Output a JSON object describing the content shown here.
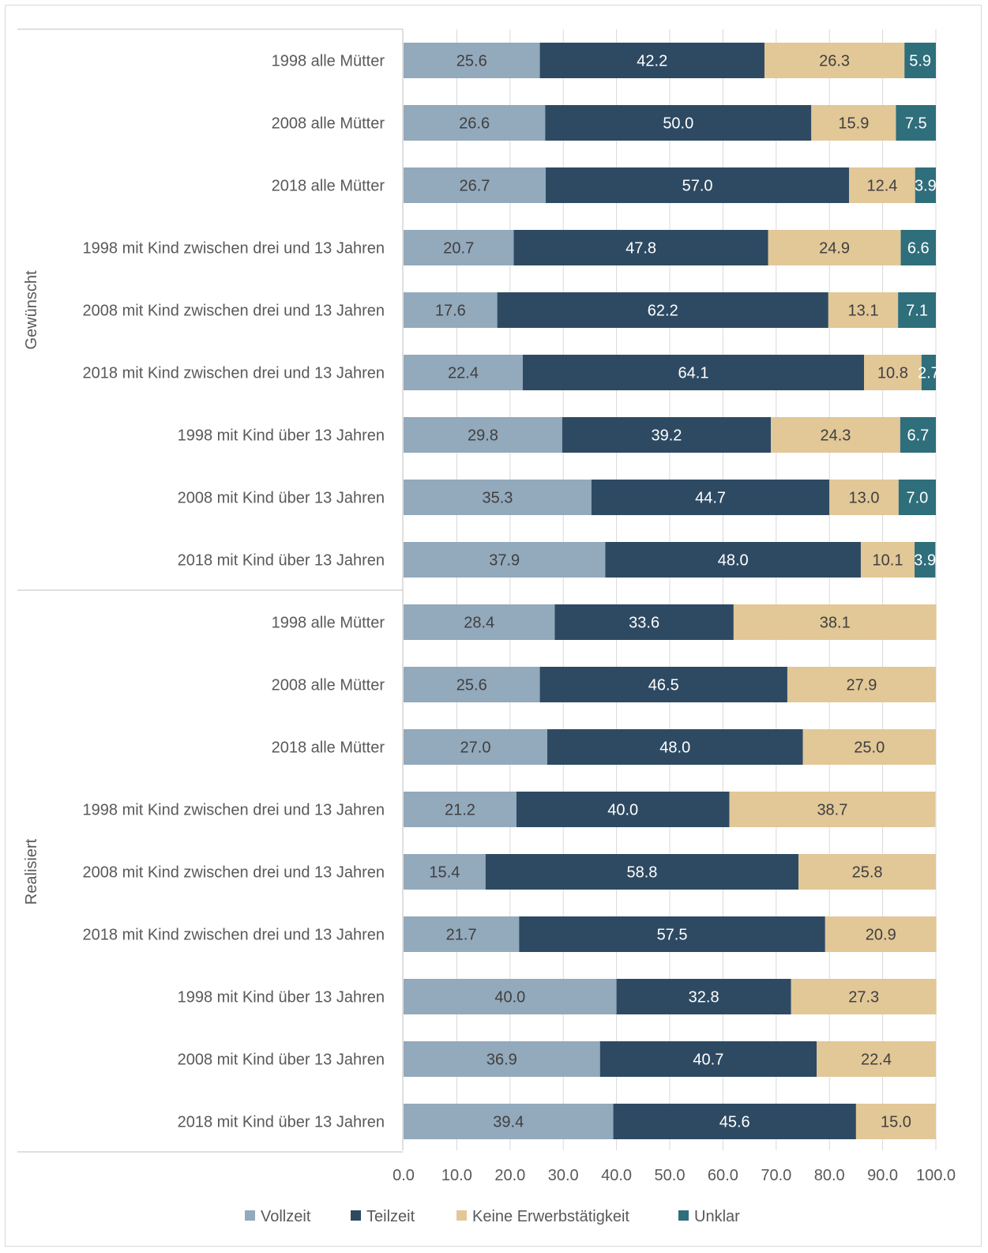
{
  "chart_data": {
    "type": "bar",
    "orientation": "horizontal",
    "stacked": true,
    "title": "",
    "xlabel": "",
    "ylabel": "",
    "xlim": [
      0,
      100
    ],
    "x_ticks": [
      "0.0",
      "10.0",
      "20.0",
      "30.0",
      "40.0",
      "50.0",
      "60.0",
      "70.0",
      "80.0",
      "90.0",
      "100.0"
    ],
    "grid": "vertical",
    "legend_position": "bottom",
    "groups": [
      {
        "label": "Gewünscht",
        "category_count": 9
      },
      {
        "label": "Realisiert",
        "category_count": 9
      }
    ],
    "categories": [
      "1998 alle Mütter",
      "2008 alle Mütter",
      "2018 alle Mütter",
      "1998 mit Kind zwischen drei und 13 Jahren",
      "2008 mit Kind zwischen drei und 13 Jahren",
      "2018 mit Kind zwischen drei und 13 Jahren",
      "1998 mit Kind über 13 Jahren",
      "2008 mit Kind über 13 Jahren",
      "2018 mit Kind über 13 Jahren",
      "1998 alle Mütter",
      "2008 alle Mütter",
      "2018 alle Mütter",
      "1998 mit Kind zwischen drei und 13 Jahren",
      "2008 mit Kind zwischen drei und 13 Jahren",
      "2018 mit Kind zwischen drei und 13 Jahren",
      "1998 mit Kind über 13 Jahren",
      "2008 mit Kind über 13 Jahren",
      "2018 mit Kind über 13 Jahren"
    ],
    "series": [
      {
        "name": "Vollzeit",
        "color": "#93a9bc",
        "label_color": "#404040",
        "values": [
          25.6,
          26.6,
          26.7,
          20.7,
          17.6,
          22.4,
          29.8,
          35.3,
          37.9,
          28.4,
          25.6,
          27.0,
          21.2,
          15.4,
          21.7,
          40.0,
          36.9,
          39.4
        ]
      },
      {
        "name": "Teilzeit",
        "color": "#2e4a63",
        "label_color": "#ffffff",
        "values": [
          42.2,
          50.0,
          57.0,
          47.8,
          62.2,
          64.1,
          39.2,
          44.7,
          48.0,
          33.6,
          46.5,
          48.0,
          40.0,
          58.8,
          57.5,
          32.8,
          40.7,
          45.6
        ]
      },
      {
        "name": "Keine Erwerbstätigkeit",
        "color": "#e2c797",
        "label_color": "#404040",
        "values": [
          26.3,
          15.9,
          12.4,
          24.9,
          13.1,
          10.8,
          24.3,
          13.0,
          10.1,
          38.1,
          27.9,
          25.0,
          38.7,
          25.8,
          20.9,
          27.3,
          22.4,
          15.0
        ]
      },
      {
        "name": "Unklar",
        "color": "#2f6e7b",
        "label_color": "#ffffff",
        "values": [
          5.9,
          7.5,
          3.9,
          6.6,
          7.1,
          2.7,
          6.7,
          7.0,
          3.9,
          null,
          null,
          null,
          null,
          null,
          null,
          null,
          null,
          null
        ]
      }
    ]
  }
}
